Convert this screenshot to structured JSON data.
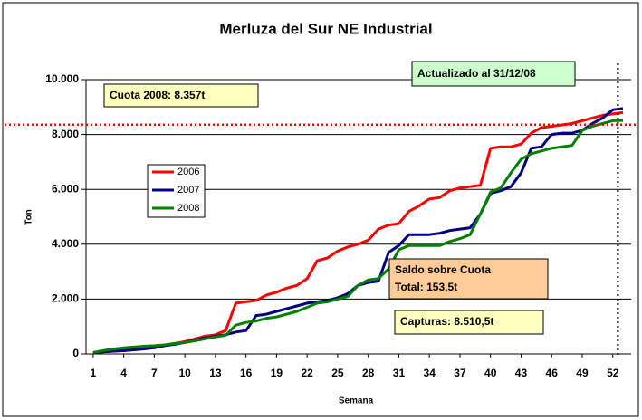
{
  "chart_data": {
    "type": "line",
    "title": "Merluza del Sur NE Industrial",
    "y_label": "Ton",
    "x_label": "Semana",
    "x": [
      1,
      2,
      3,
      4,
      5,
      6,
      7,
      8,
      9,
      10,
      11,
      12,
      13,
      14,
      15,
      16,
      17,
      18,
      19,
      20,
      21,
      22,
      23,
      24,
      25,
      26,
      27,
      28,
      29,
      30,
      31,
      32,
      33,
      34,
      35,
      36,
      37,
      38,
      39,
      40,
      41,
      42,
      43,
      44,
      45,
      46,
      47,
      48,
      49,
      50,
      51,
      52,
      53
    ],
    "xlim": [
      0.3,
      53.8
    ],
    "xticks": [
      1,
      4,
      7,
      10,
      13,
      16,
      19,
      22,
      25,
      28,
      31,
      34,
      37,
      40,
      43,
      46,
      49,
      52
    ],
    "ylim": [
      0,
      10000
    ],
    "yticks": [
      {
        "value": 0,
        "label": "0"
      },
      {
        "value": 2000,
        "label": "2.000"
      },
      {
        "value": 4000,
        "label": "4.000"
      },
      {
        "value": 6000,
        "label": "6.000"
      },
      {
        "value": 8000,
        "label": "8.000"
      },
      {
        "value": 10000,
        "label": "10.000"
      }
    ],
    "grid": true,
    "series": [
      {
        "name": "2006",
        "color": "#ff0000",
        "values": [
          50,
          80,
          100,
          120,
          150,
          200,
          250,
          320,
          380,
          450,
          550,
          650,
          700,
          850,
          1850,
          1900,
          1950,
          2150,
          2250,
          2400,
          2500,
          2750,
          3400,
          3500,
          3750,
          3900,
          4000,
          4150,
          4550,
          4700,
          4750,
          5200,
          5400,
          5650,
          5700,
          5950,
          6050,
          6100,
          6150,
          7500,
          7550,
          7550,
          7650,
          8050,
          8250,
          8300,
          8350,
          8400,
          8500,
          8600,
          8700,
          8750,
          8800
        ]
      },
      {
        "name": "2007",
        "color": "#000080",
        "values": [
          50,
          80,
          100,
          120,
          150,
          180,
          220,
          300,
          350,
          420,
          500,
          580,
          650,
          700,
          800,
          850,
          1400,
          1450,
          1550,
          1650,
          1750,
          1850,
          1900,
          1950,
          2050,
          2200,
          2500,
          2600,
          2650,
          3700,
          3950,
          4350,
          4350,
          4350,
          4400,
          4500,
          4550,
          4600,
          5100,
          5850,
          5950,
          6100,
          6600,
          7500,
          7550,
          8000,
          8050,
          8050,
          8150,
          8400,
          8600,
          8900,
          8950
        ]
      },
      {
        "name": "2008",
        "color": "#008000",
        "values": [
          50,
          120,
          180,
          220,
          250,
          280,
          300,
          330,
          380,
          420,
          480,
          550,
          620,
          680,
          1050,
          1150,
          1200,
          1300,
          1350,
          1450,
          1550,
          1700,
          1850,
          1900,
          2000,
          2100,
          2500,
          2700,
          2750,
          3100,
          3800,
          3950,
          3950,
          3950,
          3950,
          4100,
          4200,
          4350,
          5100,
          5900,
          6050,
          6600,
          7100,
          7300,
          7400,
          7500,
          7550,
          7600,
          8150,
          8300,
          8400,
          8500,
          8510
        ]
      }
    ],
    "quota": 8357,
    "quota_color": "#ff0000",
    "vline_x": 52.5,
    "annotations": {
      "quota": "Cuota 2008: 8.357t",
      "updated": "Actualizado al 31/12/08",
      "saldo": [
        "Saldo sobre Cuota",
        "Total: 153,5t"
      ],
      "capturas": "Capturas: 8.510,5t"
    }
  }
}
